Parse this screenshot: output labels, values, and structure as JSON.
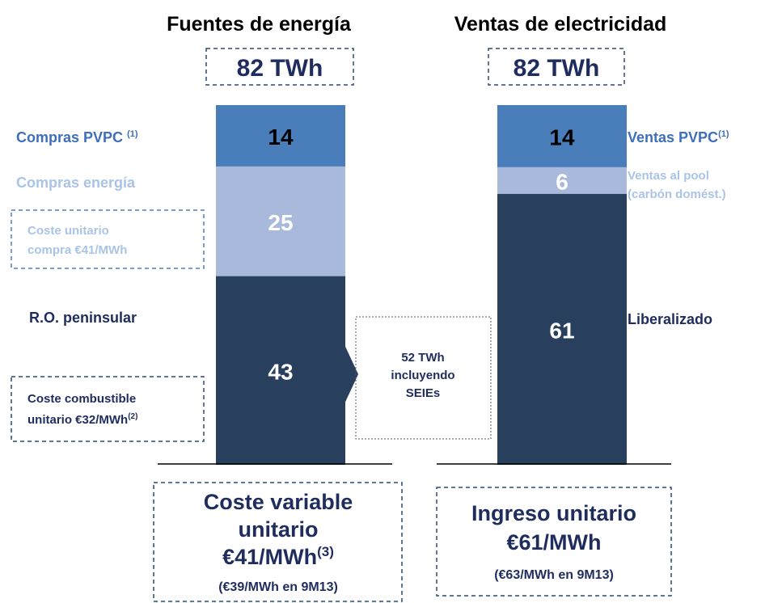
{
  "left": {
    "title": "Fuentes de energía",
    "total": "82 TWh",
    "segments": [
      {
        "value": 14,
        "label": "Compras PVPC",
        "note": "(1)",
        "color": "#4a7ebb"
      },
      {
        "value": 25,
        "label": "Compras energía",
        "color": "#a9b9dc"
      },
      {
        "value": 43,
        "label": "R.O. peninsular",
        "color": "#283f5e"
      }
    ],
    "price_box": [
      "Coste unitario",
      "compra €41/MWh"
    ],
    "fuel_box": {
      "lines": [
        "Coste combustible",
        "unitario €32/MWh"
      ],
      "note": "(2)"
    },
    "summary": {
      "lines": [
        "Coste variable",
        "unitario",
        "€41/MWh"
      ],
      "note": "(3)",
      "sub": "(€39/MWh en 9M13)"
    }
  },
  "middle": [
    "52 TWh",
    "incluyendo",
    "SEIEs"
  ],
  "right": {
    "title": "Ventas de electricidad",
    "total": "82 TWh",
    "segments": [
      {
        "value": 14,
        "label": "Ventas PVPC",
        "note": "(1)",
        "color": "#4a7ebb"
      },
      {
        "value": 6,
        "label": "Ventas al pool",
        "label2": "(carbón domést.)",
        "color": "#a9b9dc"
      },
      {
        "value": 61,
        "label": "Liberalizado",
        "color": "#283f5e"
      }
    ],
    "summary": {
      "lines": [
        "Ingreso unitario",
        "€61/MWh"
      ],
      "sub": "(€63/MWh en 9M13)"
    }
  }
}
